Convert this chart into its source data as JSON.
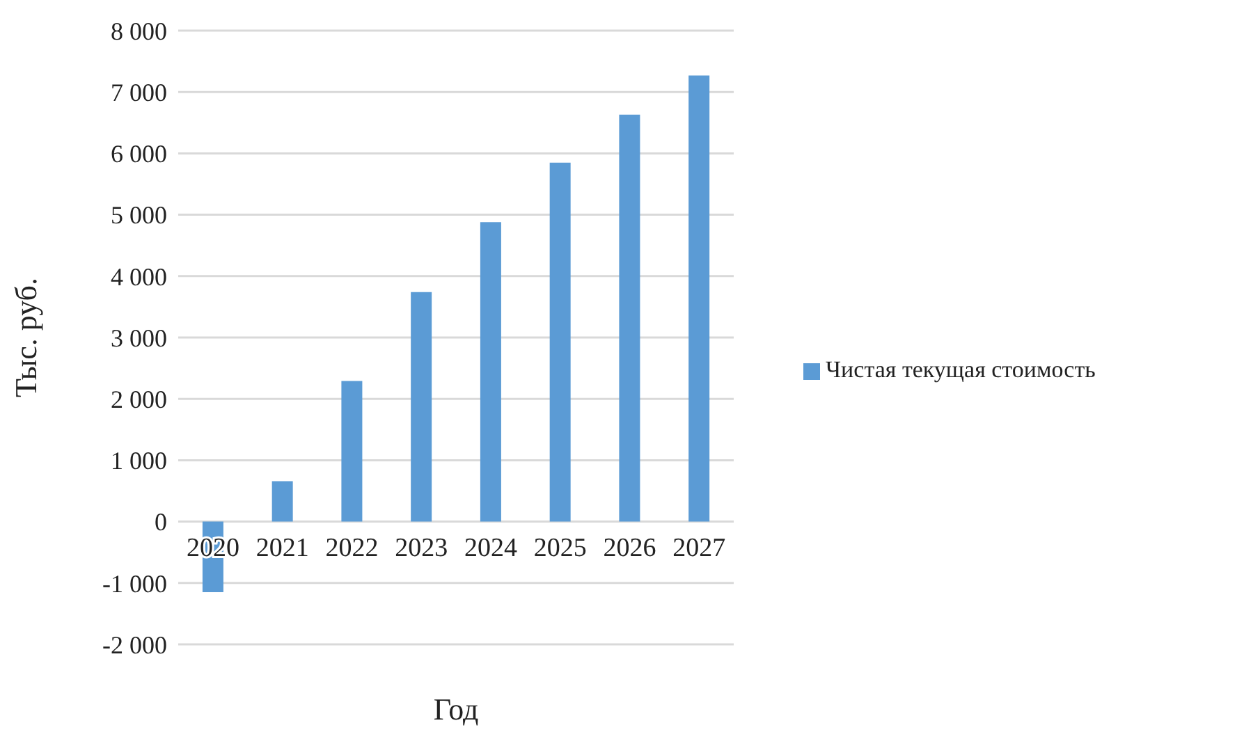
{
  "chart_data": {
    "type": "bar",
    "xlabel": "Год",
    "ylabel": "Тыс. руб.",
    "categories": [
      "2020",
      "2021",
      "2022",
      "2023",
      "2024",
      "2025",
      "2026",
      "2027"
    ],
    "series": [
      {
        "name": "Чистая текущая стоимость",
        "color": "#5b9bd5",
        "values": [
          -1150,
          660,
          2290,
          3740,
          4880,
          5850,
          6630,
          7270
        ]
      }
    ],
    "ylim": [
      -2000,
      8000
    ],
    "yticks": [
      {
        "value": -2000,
        "label": "-2 000"
      },
      {
        "value": -1000,
        "label": "-1 000"
      },
      0,
      {
        "value": 1000,
        "label": "1 000"
      },
      {
        "value": 2000,
        "label": "2 000"
      },
      {
        "value": 3000,
        "label": "3 000"
      },
      {
        "value": 4000,
        "label": "4 000"
      },
      {
        "value": 5000,
        "label": "5 000"
      },
      {
        "value": 6000,
        "label": "6 000"
      },
      {
        "value": 7000,
        "label": "7 000"
      },
      {
        "value": 8000,
        "label": "8 000"
      }
    ],
    "grid": "y",
    "legend": "right"
  }
}
